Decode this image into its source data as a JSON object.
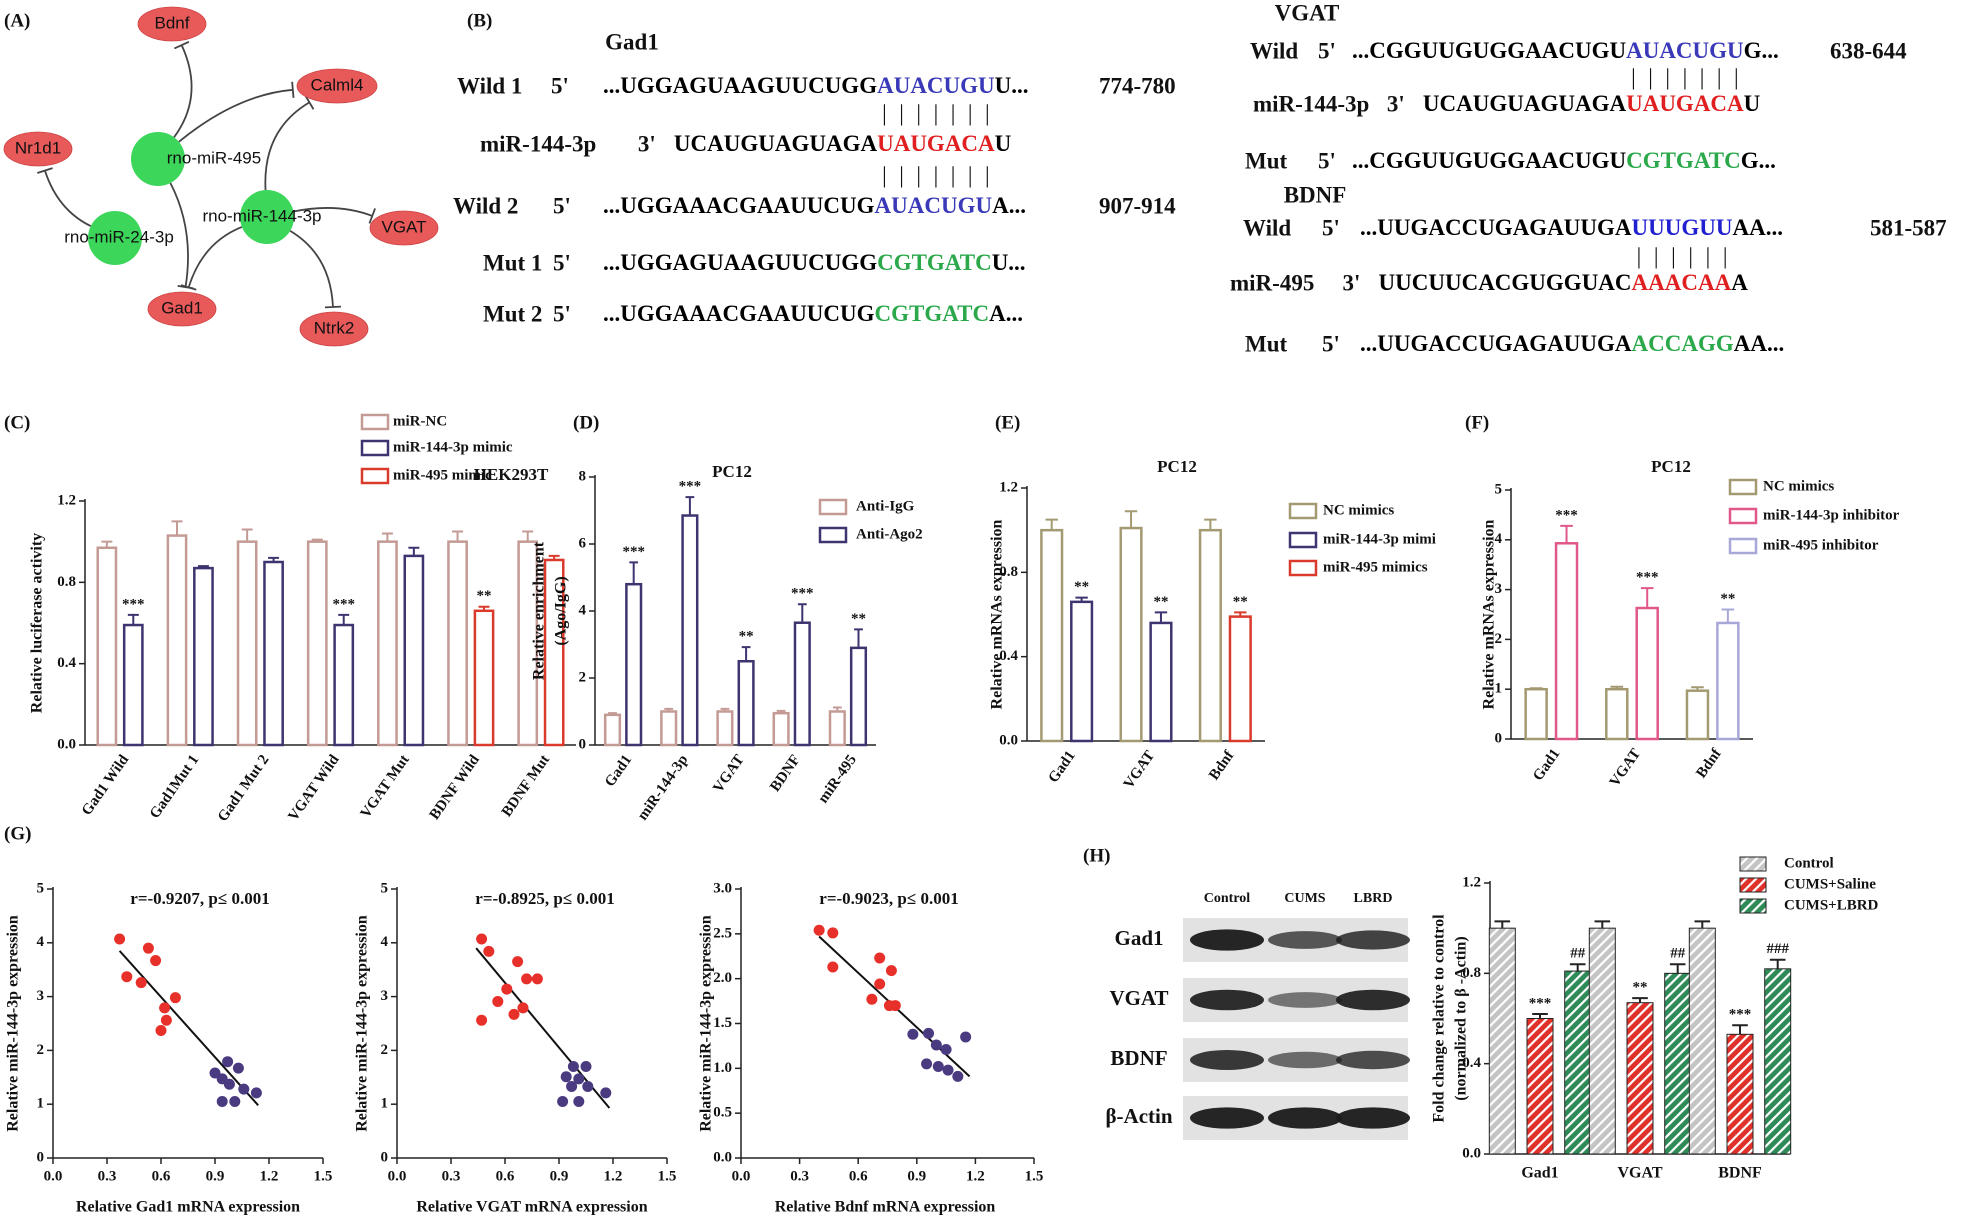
{
  "network": {
    "panel": "(A)",
    "nodes": [
      {
        "label": "Bdnf",
        "color": "#e8595a"
      },
      {
        "label": "Calml4",
        "color": "#e8595a"
      },
      {
        "label": "Nr1d1",
        "color": "#e8595a"
      },
      {
        "label": "rno-miR-495",
        "color": "#3cd65a"
      },
      {
        "label": "rno-miR-144-3p",
        "color": "#3cd65a"
      },
      {
        "label": "rno-miR-24-3p",
        "color": "#3cd65a"
      },
      {
        "label": "VGAT",
        "color": "#e8595a"
      },
      {
        "label": "Gad1",
        "color": "#e8595a"
      },
      {
        "label": "Ntrk2",
        "color": "#e8595a"
      }
    ]
  },
  "sequences": {
    "panel": "(B)",
    "blocks": [
      {
        "title": "Gad1",
        "rows": [
          {
            "label": "Wild 1",
            "end": "5'",
            "seq": [
              {
                "text": "...UGGAGUAAGUUCUGG",
                "color": "#000000"
              },
              {
                "text": "AUACUGU",
                "color": "#3a3ab8"
              },
              {
                "text": "U...",
                "color": "#000000"
              }
            ],
            "site": "774-780"
          },
          {
            "pairs": "| | | | | | |"
          },
          {
            "label": "miR-144-3p",
            "end": "3'",
            "seq": [
              {
                "text": "UCAUGUAGUAGA",
                "color": "#000000"
              },
              {
                "text": "UAUGACA",
                "color": "#e02020"
              },
              {
                "text": "U",
                "color": "#000000"
              }
            ]
          },
          {
            "pairs": "| | | | | | |"
          },
          {
            "label": "Wild 2",
            "end": "5'",
            "seq": [
              {
                "text": "...UGGAAACGAAUUCUG",
                "color": "#000000"
              },
              {
                "text": "AUACUGU",
                "color": "#3a3ab8"
              },
              {
                "text": "A...",
                "color": "#000000"
              }
            ],
            "site": "907-914"
          },
          {
            "label": "Mut 1",
            "end": "5'",
            "seq": [
              {
                "text": "...UGGAGUAAGUUCUGG",
                "color": "#000000"
              },
              {
                "text": "CGTGATC",
                "color": "#2aa84a"
              },
              {
                "text": "U...",
                "color": "#000000"
              }
            ]
          },
          {
            "label": "Mut 2",
            "end": "5'",
            "seq": [
              {
                "text": "...UGGAAACGAAUUCUG",
                "color": "#000000"
              },
              {
                "text": "CGTGATC",
                "color": "#2aa84a"
              },
              {
                "text": "A...",
                "color": "#000000"
              }
            ]
          }
        ]
      },
      {
        "title": "VGAT",
        "rows": [
          {
            "label": "Wild",
            "end": "5'",
            "seq": [
              {
                "text": "...CGGUUGUGGAACUGU",
                "color": "#000000"
              },
              {
                "text": "AUACUGU",
                "color": "#3a3ab8"
              },
              {
                "text": "G...",
                "color": "#000000"
              }
            ],
            "site": "638-644"
          },
          {
            "pairs": "| | | | | | |"
          },
          {
            "label": "miR-144-3p",
            "end": "3'",
            "seq": [
              {
                "text": "UCAUGUAGUAGA",
                "color": "#000000"
              },
              {
                "text": "UAUGACA",
                "color": "#e02020"
              },
              {
                "text": "U",
                "color": "#000000"
              }
            ]
          },
          {
            "label": "Mut",
            "end": "5'",
            "seq": [
              {
                "text": "...CGGUUGUGGAACUGU",
                "color": "#000000"
              },
              {
                "text": "CGTGATC",
                "color": "#2aa84a"
              },
              {
                "text": "G...",
                "color": "#000000"
              }
            ]
          }
        ]
      },
      {
        "title": "BDNF",
        "rows": [
          {
            "label": "Wild",
            "end": "5'",
            "seq": [
              {
                "text": "...UUGACCUGAGAUUGA",
                "color": "#000000"
              },
              {
                "text": "UUUGUU",
                "color": "#2020d0"
              },
              {
                "text": "AA...",
                "color": "#000000"
              }
            ],
            "site": "581-587"
          },
          {
            "pairs": "| | | | | |"
          },
          {
            "label": "miR-495",
            "end": "3'",
            "seq": [
              {
                "text": "UUCUUCACGUGGUAC",
                "color": "#000000"
              },
              {
                "text": "AAACAA",
                "color": "#e02020"
              },
              {
                "text": "A",
                "color": "#000000"
              }
            ]
          },
          {
            "label": "Mut",
            "end": "5'",
            "seq": [
              {
                "text": "...UUGACCUGAGAUUGA",
                "color": "#000000"
              },
              {
                "text": "ACCAGG",
                "color": "#2aa84a"
              },
              {
                "text": "AA...",
                "color": "#000000"
              }
            ]
          }
        ]
      }
    ]
  },
  "blot": {
    "panel": "(H)",
    "columns": [
      "Control",
      "CUMS",
      "LBRD"
    ],
    "rows": [
      "Gad1",
      "VGAT",
      "BDNF",
      "β-Actin"
    ]
  },
  "chart_data": [
    {
      "type": "bar",
      "panel": "(C)",
      "title": "HEK293T",
      "ylabel": [
        "Relative luciferase activity"
      ],
      "bar_style": "outline",
      "categories": [
        "Gad1 Wild",
        "Gad1Mut 1",
        "Gad1 Mut 2",
        "VGAT Wild",
        "VGAT Mut",
        "BDNF Wild",
        "BDNF Mut"
      ],
      "ylim": [
        0,
        1.2
      ],
      "yticks": [
        {
          "value": 0,
          "label": "0.0"
        },
        {
          "value": 0.4,
          "label": "0.4"
        },
        {
          "value": 0.8,
          "label": "0.8"
        },
        {
          "value": 1.2,
          "label": "1.2"
        }
      ],
      "series": [
        {
          "name": "miR-NC",
          "color": "#c49a94",
          "values": [
            0.97,
            1.03,
            1.0,
            1.0,
            1.0,
            1.0,
            1.0
          ],
          "errors": [
            0.03,
            0.07,
            0.06,
            0.01,
            0.04,
            0.05,
            0.05
          ]
        },
        {
          "name": "miR-144-3p mimic",
          "color": "#3d3470",
          "values": [
            0.59,
            0.87,
            0.9,
            0.59,
            0.93,
            null,
            null
          ],
          "errors": [
            0.05,
            0.01,
            0.02,
            0.05,
            0.04,
            null,
            null
          ],
          "sig": [
            "***",
            null,
            null,
            "***",
            null,
            null,
            null
          ]
        },
        {
          "name": "miR-495 mimic",
          "color": "#d93a2b",
          "values": [
            null,
            null,
            null,
            null,
            null,
            0.66,
            0.91
          ],
          "errors": [
            null,
            null,
            null,
            null,
            null,
            0.02,
            0.02
          ],
          "sig": [
            null,
            null,
            null,
            null,
            null,
            "**",
            null
          ]
        }
      ]
    },
    {
      "type": "bar",
      "panel": "(D)",
      "title": "PC12",
      "ylabel": [
        "Relative enrichment",
        "(Ago/IgG)"
      ],
      "bar_style": "outline",
      "categories": [
        "Gad1",
        "miR-144-3p",
        "VGAT",
        "BDNF",
        "miR-495"
      ],
      "ylim": [
        0,
        8
      ],
      "yticks": [
        0,
        2,
        4,
        6,
        8
      ],
      "series": [
        {
          "name": "Anti-IgG",
          "color": "#c49a94",
          "values": [
            0.9,
            1.0,
            1.0,
            0.95,
            1.0
          ],
          "errors": [
            0.05,
            0.08,
            0.08,
            0.07,
            0.12
          ]
        },
        {
          "name": "Anti-Ago2",
          "color": "#3d3470",
          "values": [
            4.8,
            6.85,
            2.5,
            3.65,
            2.9
          ],
          "errors": [
            0.65,
            0.55,
            0.42,
            0.55,
            0.55
          ],
          "sig": [
            "***",
            "***",
            "**",
            "***",
            "**"
          ]
        }
      ]
    },
    {
      "type": "bar",
      "panel": "(E)",
      "title": "PC12",
      "ylabel": [
        "Relative mRNAs expression"
      ],
      "bar_style": "outline",
      "categories": [
        "Gad1",
        "VGAT",
        "Bdnf"
      ],
      "ylim": [
        0,
        1.2
      ],
      "yticks": [
        {
          "value": 0,
          "label": "0.0"
        },
        {
          "value": 0.4,
          "label": "0.4"
        },
        {
          "value": 0.8,
          "label": "0.8"
        },
        {
          "value": 1.2,
          "label": "1.2"
        }
      ],
      "series": [
        {
          "name": "NC mimics",
          "color": "#a39a72",
          "values": [
            1.0,
            1.01,
            1.0
          ],
          "errors": [
            0.05,
            0.08,
            0.05
          ]
        },
        {
          "name": "miR-144-3p mimi",
          "color": "#3d3470",
          "values": [
            0.66,
            0.56,
            null
          ],
          "errors": [
            0.02,
            0.05,
            null
          ],
          "sig": [
            "**",
            "**",
            null
          ]
        },
        {
          "name": "miR-495 mimics",
          "color": "#d93a2b",
          "values": [
            null,
            null,
            0.59
          ],
          "errors": [
            null,
            null,
            0.02
          ],
          "sig": [
            null,
            null,
            "**"
          ]
        }
      ]
    },
    {
      "type": "bar",
      "panel": "(F)",
      "title": "PC12",
      "ylabel": [
        "Relative mRNAs expression"
      ],
      "bar_style": "outline",
      "categories": [
        "Gad1",
        "VGAT",
        "Bdnf"
      ],
      "ylim": [
        0,
        5
      ],
      "yticks": [
        0,
        1,
        2,
        3,
        4,
        5
      ],
      "series": [
        {
          "name": "NC mimics",
          "color": "#a39a72",
          "values": [
            1.0,
            1.0,
            0.97
          ],
          "errors": [
            0.02,
            0.05,
            0.07
          ]
        },
        {
          "name": "miR-144-3p inhibitor",
          "color": "#e0588a",
          "values": [
            3.93,
            2.63,
            null
          ],
          "errors": [
            0.35,
            0.4,
            null
          ],
          "sig": [
            "***",
            "***",
            null
          ]
        },
        {
          "name": "miR-495 inhibitor",
          "color": "#a8a8d8",
          "values": [
            null,
            null,
            2.33
          ],
          "errors": [
            null,
            null,
            0.27
          ],
          "sig": [
            null,
            null,
            "**"
          ]
        }
      ]
    },
    {
      "type": "scatter",
      "panel": "(G)",
      "annotation": "r=-0.9207, p≤ 0.001",
      "xlabel": "Relative Gad1 mRNA expression",
      "ylabel": "Relative miR-144-3p expression",
      "xlim": [
        0,
        1.5
      ],
      "xticks": [
        {
          "value": 0,
          "label": "0.0"
        },
        0.3,
        0.6,
        0.9,
        1.2,
        1.5
      ],
      "ylim": [
        0,
        5
      ],
      "yticks": [
        0,
        1,
        2,
        3,
        4,
        5
      ],
      "series": [
        {
          "color": "#e8302a",
          "x": [
            0.37,
            0.41,
            0.49,
            0.53,
            0.57,
            0.68,
            0.62,
            0.6,
            0.63
          ],
          "values": [
            4.07,
            3.37,
            3.26,
            3.9,
            3.67,
            2.98,
            2.79,
            2.37,
            2.56
          ]
        },
        {
          "color": "#4a3a80",
          "x": [
            0.9,
            0.94,
            1.03,
            0.98,
            1.06,
            1.13,
            0.94,
            1.01,
            0.97
          ],
          "values": [
            1.58,
            1.47,
            1.67,
            1.37,
            1.28,
            1.21,
            1.05,
            1.05,
            1.79
          ]
        }
      ],
      "fit": {
        "x": [
          0.37,
          1.14
        ],
        "values": [
          3.85,
          0.98
        ]
      }
    },
    {
      "type": "scatter",
      "annotation": "r=-0.8925, p≤ 0.001",
      "xlabel": "Relative VGAT mRNA expression",
      "ylabel": "Relative miR-144-3p expression",
      "xlim": [
        0,
        1.5
      ],
      "xticks": [
        {
          "value": 0,
          "label": "0.0"
        },
        0.3,
        0.6,
        0.9,
        1.2,
        1.5
      ],
      "ylim": [
        0,
        5
      ],
      "yticks": [
        0,
        1,
        2,
        3,
        4,
        5
      ],
      "series": [
        {
          "color": "#e8302a",
          "x": [
            0.47,
            0.51,
            0.67,
            0.72,
            0.78,
            0.61,
            0.56,
            0.65,
            0.47,
            0.7
          ],
          "values": [
            4.07,
            3.84,
            3.65,
            3.33,
            3.33,
            3.14,
            2.91,
            2.67,
            2.56,
            2.79
          ]
        },
        {
          "color": "#4a3a80",
          "x": [
            0.98,
            1.05,
            1.01,
            0.94,
            1.06,
            1.16,
            0.92,
            1.01,
            0.97
          ],
          "values": [
            1.7,
            1.7,
            1.47,
            1.51,
            1.33,
            1.21,
            1.05,
            1.05,
            1.33
          ]
        }
      ],
      "fit": {
        "x": [
          0.44,
          1.18
        ],
        "values": [
          3.9,
          0.93
        ]
      }
    },
    {
      "type": "scatter",
      "annotation": "r=-0.9023, p≤ 0.001",
      "xlabel": "Relative Bdnf mRNA expression",
      "ylabel": "Relative miR-144-3p expression",
      "xlim": [
        0,
        1.5
      ],
      "xticks": [
        {
          "value": 0,
          "label": "0.0"
        },
        0.3,
        0.6,
        0.9,
        1.2,
        1.5
      ],
      "ylim": [
        0,
        3
      ],
      "yticks": [
        {
          "value": 0,
          "label": "0.0"
        },
        0.5,
        {
          "value": 1,
          "label": "1.0"
        },
        1.5,
        {
          "value": 2,
          "label": "2.0"
        },
        2.5,
        {
          "value": 3,
          "label": "3.0"
        }
      ],
      "series": [
        {
          "color": "#e8302a",
          "x": [
            0.4,
            0.47,
            0.71,
            0.77,
            0.47,
            0.67,
            0.76,
            0.79,
            0.71
          ],
          "values": [
            2.54,
            2.51,
            2.23,
            2.09,
            2.13,
            1.77,
            1.7,
            1.7,
            1.94
          ]
        },
        {
          "color": "#4a3a80",
          "x": [
            0.96,
            1.15,
            1.0,
            1.05,
            0.95,
            1.01,
            1.06,
            1.11,
            0.88
          ],
          "values": [
            1.39,
            1.35,
            1.26,
            1.21,
            1.05,
            1.02,
            0.98,
            0.91,
            1.38
          ]
        }
      ],
      "fit": {
        "x": [
          0.4,
          1.17
        ],
        "values": [
          2.47,
          0.91
        ]
      }
    },
    {
      "type": "bar",
      "ylabel": [
        "Fold change relative to control",
        "(normalized to β -Actin)"
      ],
      "bar_style": "hatch",
      "categories": [
        "Gad1",
        "VGAT",
        "BDNF"
      ],
      "ylim": [
        0,
        1.2
      ],
      "yticks": [
        {
          "value": 0,
          "label": "0.0"
        },
        {
          "value": 0.4,
          "label": "0.4"
        },
        {
          "value": 0.8,
          "label": "0.8"
        },
        {
          "value": 1.2,
          "label": "1.2"
        }
      ],
      "series": [
        {
          "name": "Control",
          "color": "#c4c4c4",
          "values": [
            1.0,
            1.0,
            1.0
          ],
          "errors": [
            0.03,
            0.03,
            0.03
          ]
        },
        {
          "name": "CUMS+Saline",
          "color": "#e0302a",
          "values": [
            0.6,
            0.67,
            0.53
          ],
          "errors": [
            0.02,
            0.02,
            0.04
          ],
          "sig": [
            "***",
            "**",
            "***"
          ]
        },
        {
          "name": "CUMS+LBRD",
          "color": "#2e8b57",
          "values": [
            0.81,
            0.8,
            0.82
          ],
          "errors": [
            0.03,
            0.04,
            0.04
          ],
          "sig": [
            "##",
            "##",
            "###"
          ]
        }
      ]
    }
  ]
}
